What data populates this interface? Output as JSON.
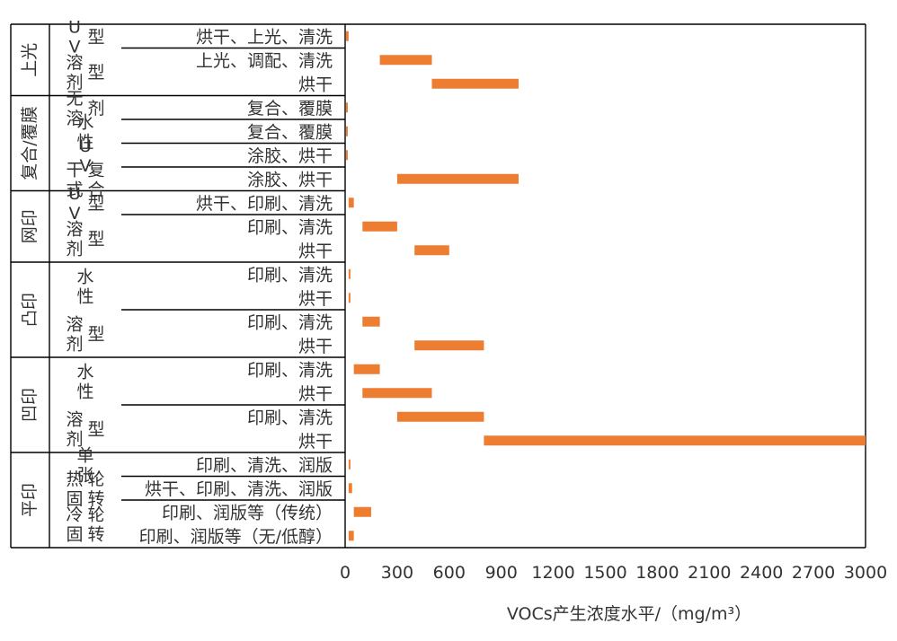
{
  "chart_data": {
    "type": "bar",
    "subtype": "floating-range-horizontal",
    "x_axis": {
      "label": "VOCs产生浓度水平/（mg/m³）",
      "range": [
        0,
        3000
      ],
      "ticks": [
        0,
        300,
        600,
        900,
        1200,
        1500,
        1800,
        2100,
        2400,
        2700,
        3000
      ]
    },
    "bar_color": "#ED7D31",
    "categories": [
      {
        "process": "上光",
        "type": "UV型",
        "step": "烘干、上光、清洗",
        "low": 5,
        "high": 20
      },
      {
        "process": "上光",
        "type": "溶剂型",
        "step": "上光、调配、清洗",
        "low": 200,
        "high": 500
      },
      {
        "process": "上光",
        "type": "溶剂型",
        "step": "烘干",
        "low": 500,
        "high": 1000
      },
      {
        "process": "复合/覆膜",
        "type": "无溶剂",
        "step": "复合、覆膜",
        "low": 5,
        "high": 15
      },
      {
        "process": "复合/覆膜",
        "type": "水性",
        "step": "复合、覆膜",
        "low": 5,
        "high": 15
      },
      {
        "process": "复合/覆膜",
        "type": "UV",
        "step": "涂胶、烘干",
        "low": 5,
        "high": 15
      },
      {
        "process": "复合/覆膜",
        "type": "干式复合",
        "step": "涂胶、烘干",
        "low": 300,
        "high": 1000
      },
      {
        "process": "网印",
        "type": "UV型",
        "step": "烘干、印刷、清洗",
        "low": 20,
        "high": 50
      },
      {
        "process": "网印",
        "type": "溶剂型",
        "step": "印刷、清洗",
        "low": 100,
        "high": 300
      },
      {
        "process": "网印",
        "type": "溶剂型",
        "step": "烘干",
        "low": 400,
        "high": 600
      },
      {
        "process": "凸印",
        "type": "水性",
        "step": "印刷、清洗",
        "low": 20,
        "high": 30
      },
      {
        "process": "凸印",
        "type": "水性",
        "step": "烘干",
        "low": 20,
        "high": 30
      },
      {
        "process": "凸印",
        "type": "溶剂型",
        "step": "印刷、清洗",
        "low": 100,
        "high": 200
      },
      {
        "process": "凸印",
        "type": "溶剂型",
        "step": "烘干",
        "low": 400,
        "high": 800
      },
      {
        "process": "凹印",
        "type": "水性",
        "step": "印刷、清洗",
        "low": 50,
        "high": 200
      },
      {
        "process": "凹印",
        "type": "水性",
        "step": "烘干",
        "low": 100,
        "high": 500
      },
      {
        "process": "凹印",
        "type": "溶剂型",
        "step": "印刷、清洗",
        "low": 300,
        "high": 800
      },
      {
        "process": "凹印",
        "type": "溶剂型",
        "step": "烘干",
        "low": 800,
        "high": 3000
      },
      {
        "process": "平印",
        "type": "单张",
        "step": "印刷、清洗、润版",
        "low": 20,
        "high": 30
      },
      {
        "process": "平印",
        "type": "热固轮转",
        "step": "烘干、印刷、清洗、润版",
        "low": 20,
        "high": 40
      },
      {
        "process": "平印",
        "type": "冷固轮转",
        "step": "印刷、润版等（传统）",
        "low": 50,
        "high": 150
      },
      {
        "process": "平印",
        "type": "冷固轮转",
        "step": "印刷、润版等（无/低醇）",
        "low": 20,
        "high": 50
      }
    ],
    "groups": [
      {
        "label": "上光",
        "start": 0,
        "end": 2
      },
      {
        "label": "复合/覆膜",
        "start": 3,
        "end": 6
      },
      {
        "label": "网印",
        "start": 7,
        "end": 9
      },
      {
        "label": "凸印",
        "start": 10,
        "end": 13
      },
      {
        "label": "凹印",
        "start": 14,
        "end": 17
      },
      {
        "label": "平印",
        "start": 18,
        "end": 21
      }
    ],
    "subgroups": [
      {
        "label": "UV型",
        "start": 0,
        "end": 0
      },
      {
        "label": "溶剂型",
        "start": 1,
        "end": 2
      },
      {
        "label": "无溶剂",
        "start": 3,
        "end": 3
      },
      {
        "label": "水性",
        "start": 4,
        "end": 4
      },
      {
        "label": "UV",
        "start": 5,
        "end": 5
      },
      {
        "label": "干式复合",
        "start": 6,
        "end": 6
      },
      {
        "label": "UV型",
        "start": 7,
        "end": 7
      },
      {
        "label": "溶剂型",
        "start": 8,
        "end": 9
      },
      {
        "label": "水性",
        "start": 10,
        "end": 11
      },
      {
        "label": "溶剂型",
        "start": 12,
        "end": 13
      },
      {
        "label": "水性",
        "start": 14,
        "end": 15
      },
      {
        "label": "溶剂型",
        "start": 16,
        "end": 17
      },
      {
        "label": "单张",
        "start": 18,
        "end": 18
      },
      {
        "label": "热固轮转",
        "start": 19,
        "end": 19
      },
      {
        "label": "冷固轮转",
        "start": 20,
        "end": 21
      }
    ]
  }
}
